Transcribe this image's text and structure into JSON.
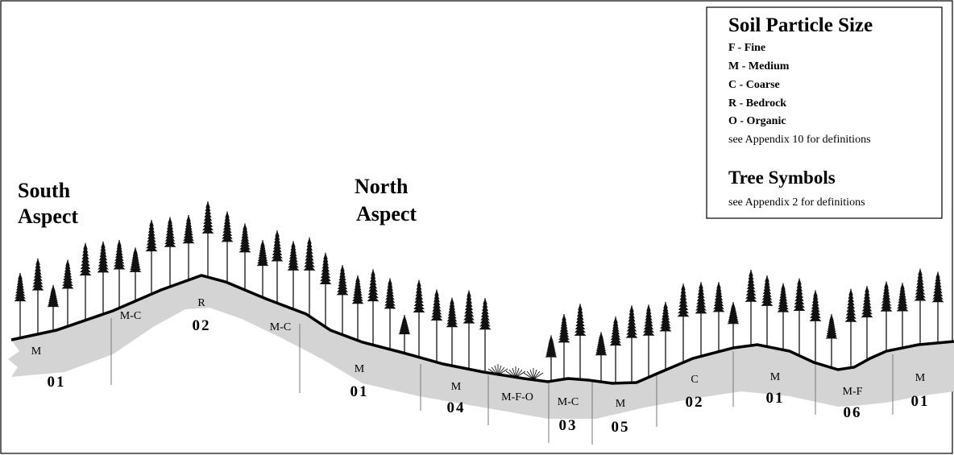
{
  "aspects": {
    "south": [
      "South",
      "Aspect"
    ],
    "north": [
      "North",
      "Aspect"
    ]
  },
  "legend": {
    "title": "Soil Particle Size",
    "items": [
      "F - Fine",
      "M - Medium",
      "C - Coarse",
      "R - Bedrock",
      "O - Organic"
    ],
    "note": "see Appendix 10 for definitions",
    "tree_title": "Tree Symbols",
    "tree_note": "see Appendix 2 for definitions"
  },
  "soil_units": [
    {
      "texture": "M",
      "unit": "01"
    },
    {
      "texture": "M-C"
    },
    {
      "texture": "R",
      "unit": "02"
    },
    {
      "texture": "M-C"
    },
    {
      "texture": "M",
      "unit": "01"
    },
    {
      "texture": "M",
      "unit": "04"
    },
    {
      "texture": "M-F-O"
    },
    {
      "texture": "M-C",
      "unit": "03"
    },
    {
      "texture": "M",
      "unit": "05"
    },
    {
      "texture": "C",
      "unit": "02"
    },
    {
      "texture": "M",
      "unit": "01"
    },
    {
      "texture": "M-F",
      "unit": "06"
    },
    {
      "texture": "M",
      "unit": "01"
    }
  ]
}
